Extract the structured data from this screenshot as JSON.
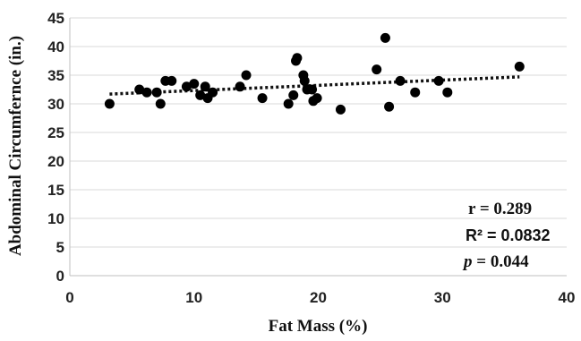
{
  "chart_data": {
    "type": "scatter",
    "xlabel": "Fat Mass (%)",
    "ylabel": "Abdominal Circumfernce (in.)",
    "xlim": [
      0,
      40
    ],
    "ylim": [
      0,
      45
    ],
    "xticks": [
      0,
      10,
      20,
      30,
      40
    ],
    "yticks": [
      0,
      5,
      10,
      15,
      20,
      25,
      30,
      35,
      40,
      45
    ],
    "grid": "horizontal",
    "points": [
      {
        "x": 3.2,
        "y": 30
      },
      {
        "x": 5.6,
        "y": 32.5
      },
      {
        "x": 6.2,
        "y": 32
      },
      {
        "x": 7.0,
        "y": 32
      },
      {
        "x": 7.3,
        "y": 30
      },
      {
        "x": 7.7,
        "y": 34
      },
      {
        "x": 8.2,
        "y": 34
      },
      {
        "x": 9.4,
        "y": 33
      },
      {
        "x": 10.0,
        "y": 33.5
      },
      {
        "x": 10.5,
        "y": 31.5
      },
      {
        "x": 10.9,
        "y": 33
      },
      {
        "x": 11.1,
        "y": 31
      },
      {
        "x": 11.5,
        "y": 32
      },
      {
        "x": 13.7,
        "y": 33
      },
      {
        "x": 14.2,
        "y": 35
      },
      {
        "x": 15.5,
        "y": 31
      },
      {
        "x": 17.6,
        "y": 30
      },
      {
        "x": 18.0,
        "y": 31.5
      },
      {
        "x": 18.2,
        "y": 37.5
      },
      {
        "x": 18.3,
        "y": 38
      },
      {
        "x": 18.8,
        "y": 35
      },
      {
        "x": 18.9,
        "y": 34
      },
      {
        "x": 19.1,
        "y": 32.5
      },
      {
        "x": 19.5,
        "y": 32.5
      },
      {
        "x": 19.6,
        "y": 30.5
      },
      {
        "x": 19.9,
        "y": 31
      },
      {
        "x": 21.8,
        "y": 29
      },
      {
        "x": 24.7,
        "y": 36
      },
      {
        "x": 25.4,
        "y": 41.5
      },
      {
        "x": 25.7,
        "y": 29.5
      },
      {
        "x": 26.6,
        "y": 34
      },
      {
        "x": 27.8,
        "y": 32
      },
      {
        "x": 29.7,
        "y": 34
      },
      {
        "x": 30.4,
        "y": 32
      },
      {
        "x": 36.2,
        "y": 36.5
      }
    ],
    "trendline": {
      "x": [
        3.2,
        36.2
      ],
      "y": [
        31.7,
        34.7
      ]
    },
    "annotations": {
      "r": "r = 0.289",
      "r2": "R² = 0.0832",
      "p_symbol": "p",
      "p_value": " = 0.044"
    }
  }
}
